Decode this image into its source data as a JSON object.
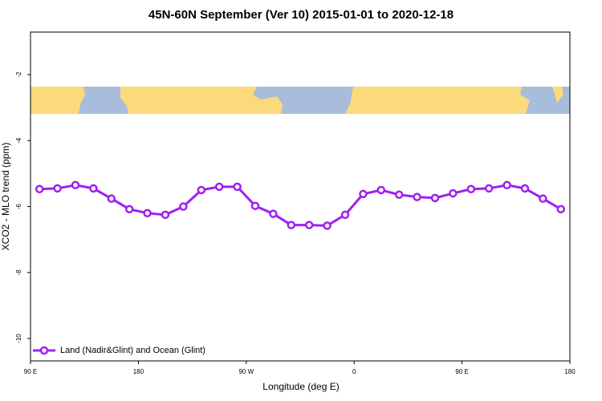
{
  "chart_data": {
    "type": "line",
    "title": "45N-60N September (Ver 10)   2015-01-01 to 2020-12-18",
    "x_label": "Longitude (deg E)",
    "y_label": "XCO2 - MLO trend (ppm)",
    "xlim": [
      90,
      540
    ],
    "xticks": [
      {
        "value": 90,
        "label": "90 E"
      },
      {
        "value": 180,
        "label": "180"
      },
      {
        "value": 270,
        "label": "90 W"
      },
      {
        "value": 360,
        "label": "0"
      },
      {
        "value": 450,
        "label": "90 E"
      },
      {
        "value": 540,
        "label": "180"
      }
    ],
    "ylim": [
      -10.68,
      -0.71
    ],
    "yticks": [
      -2,
      -4,
      -6,
      -8,
      -10
    ],
    "legend": "bottom-left",
    "x": [
      97.5,
      112.5,
      127.5,
      142.5,
      157.5,
      172.5,
      187.5,
      202.5,
      217.5,
      232.5,
      247.5,
      262.5,
      277.5,
      292.5,
      307.5,
      322.5,
      337.5,
      352.5,
      367.5,
      382.5,
      397.5,
      412.5,
      427.5,
      442.5,
      457.5,
      472.5,
      487.5,
      502.5,
      517.5,
      532.5
    ],
    "series": [
      {
        "name": "Land (Nadir&Glint) and Ocean (Glint)",
        "color": "#a020f0",
        "values": [
          -5.47,
          -5.45,
          -5.35,
          -5.45,
          -5.76,
          -6.08,
          -6.2,
          -6.25,
          -6.0,
          -5.5,
          -5.4,
          -5.4,
          -5.98,
          -6.22,
          -6.56,
          -6.56,
          -6.58,
          -6.25,
          -5.62,
          -5.5,
          -5.64,
          -5.71,
          -5.74,
          -5.6,
          -5.47,
          -5.45,
          -5.35,
          -5.45,
          -5.76,
          -6.08
        ]
      }
    ]
  }
}
